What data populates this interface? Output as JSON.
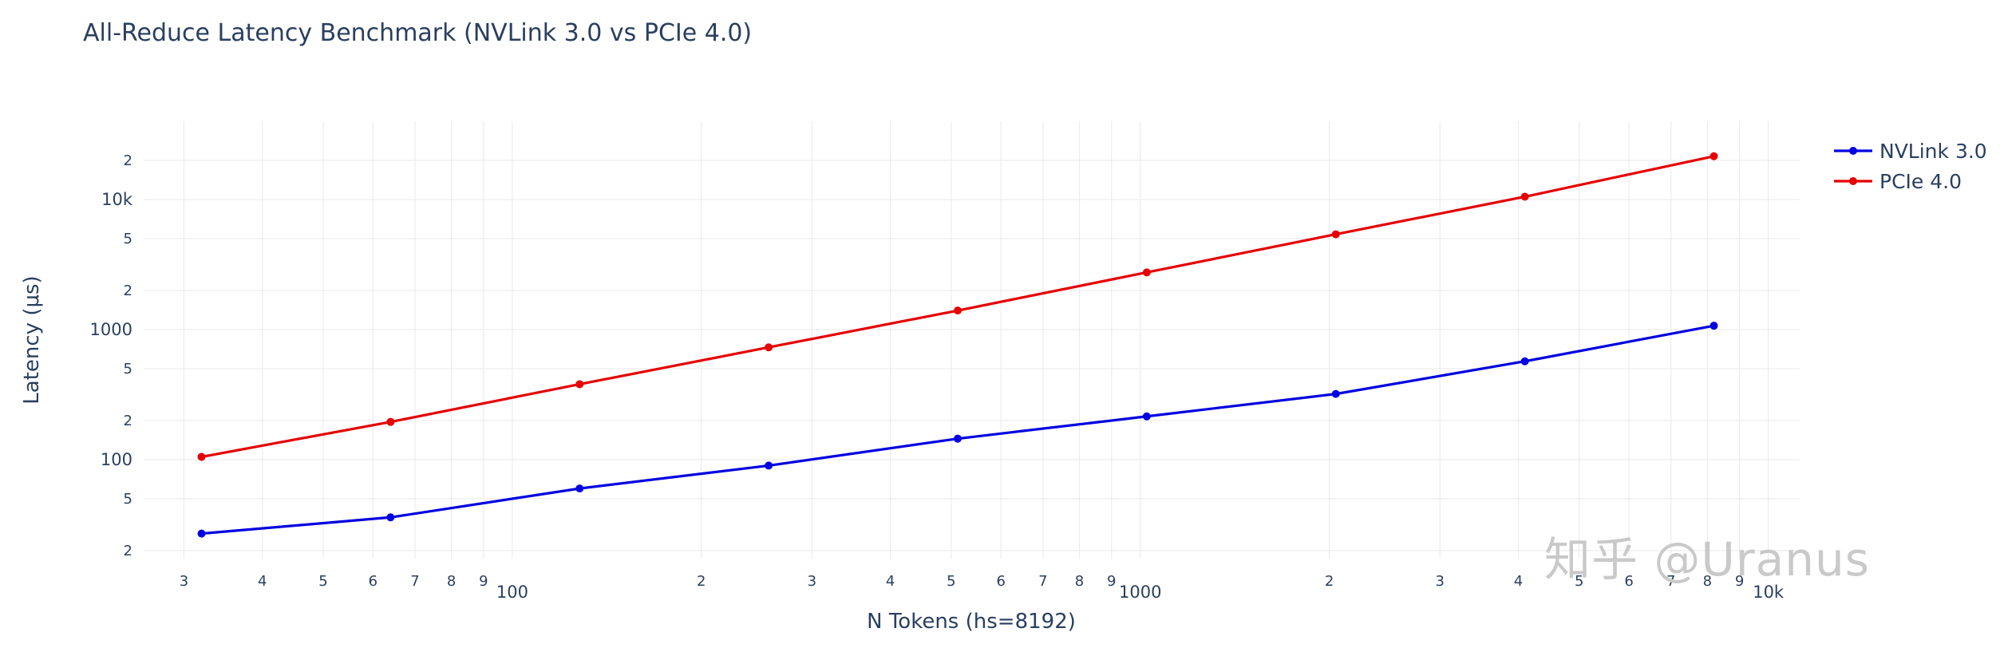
{
  "watermark": "知乎 @Uranus",
  "colors": {
    "text": "#2a3f5f",
    "grid": "#e9e9e9",
    "background": "#ffffff",
    "watermark": "#c9c9c9"
  },
  "chart_data": {
    "type": "line",
    "title": "All-Reduce Latency Benchmark (NVLink 3.0 vs PCIe 4.0)",
    "xlabel": "N Tokens (hs=8192)",
    "ylabel": "Latency (μs)",
    "x_scale": "log",
    "y_scale": "log",
    "grid": true,
    "legend_position": "top-right",
    "x_range_log10": [
      1.413,
      4.05
    ],
    "y_range_log10": [
      1.239,
      4.601
    ],
    "x": [
      32,
      64,
      128,
      256,
      512,
      1024,
      2048,
      4096,
      8192
    ],
    "series": [
      {
        "name": "NVLink 3.0",
        "color": "#0000e0",
        "values": [
          27,
          36,
          60,
          90,
          145,
          215,
          320,
          570,
          1070
        ]
      },
      {
        "name": "PCIe 4.0",
        "color": "#e60000",
        "values": [
          105,
          195,
          380,
          730,
          1400,
          2750,
          5400,
          10500,
          21500
        ]
      }
    ],
    "x_ticks": {
      "major": [
        [
          100,
          "100"
        ],
        [
          1000,
          "1000"
        ],
        [
          10000,
          "10k"
        ]
      ],
      "minor": [
        [
          30,
          "3"
        ],
        [
          40,
          "4"
        ],
        [
          50,
          "5"
        ],
        [
          60,
          "6"
        ],
        [
          70,
          "7"
        ],
        [
          80,
          "8"
        ],
        [
          90,
          "9"
        ],
        [
          200,
          "2"
        ],
        [
          300,
          "3"
        ],
        [
          400,
          "4"
        ],
        [
          500,
          "5"
        ],
        [
          600,
          "6"
        ],
        [
          700,
          "7"
        ],
        [
          800,
          "8"
        ],
        [
          900,
          "9"
        ],
        [
          2000,
          "2"
        ],
        [
          3000,
          "3"
        ],
        [
          4000,
          "4"
        ],
        [
          5000,
          "5"
        ],
        [
          6000,
          "6"
        ],
        [
          7000,
          "7"
        ],
        [
          8000,
          "8"
        ],
        [
          9000,
          "9"
        ]
      ]
    },
    "y_ticks": {
      "major": [
        [
          100,
          "100"
        ],
        [
          1000,
          "1000"
        ],
        [
          10000,
          "10k"
        ]
      ],
      "minor": [
        [
          20,
          "2"
        ],
        [
          50,
          "5"
        ],
        [
          200,
          "2"
        ],
        [
          500,
          "5"
        ],
        [
          2000,
          "2"
        ],
        [
          5000,
          "5"
        ],
        [
          20000,
          "2"
        ]
      ]
    }
  }
}
